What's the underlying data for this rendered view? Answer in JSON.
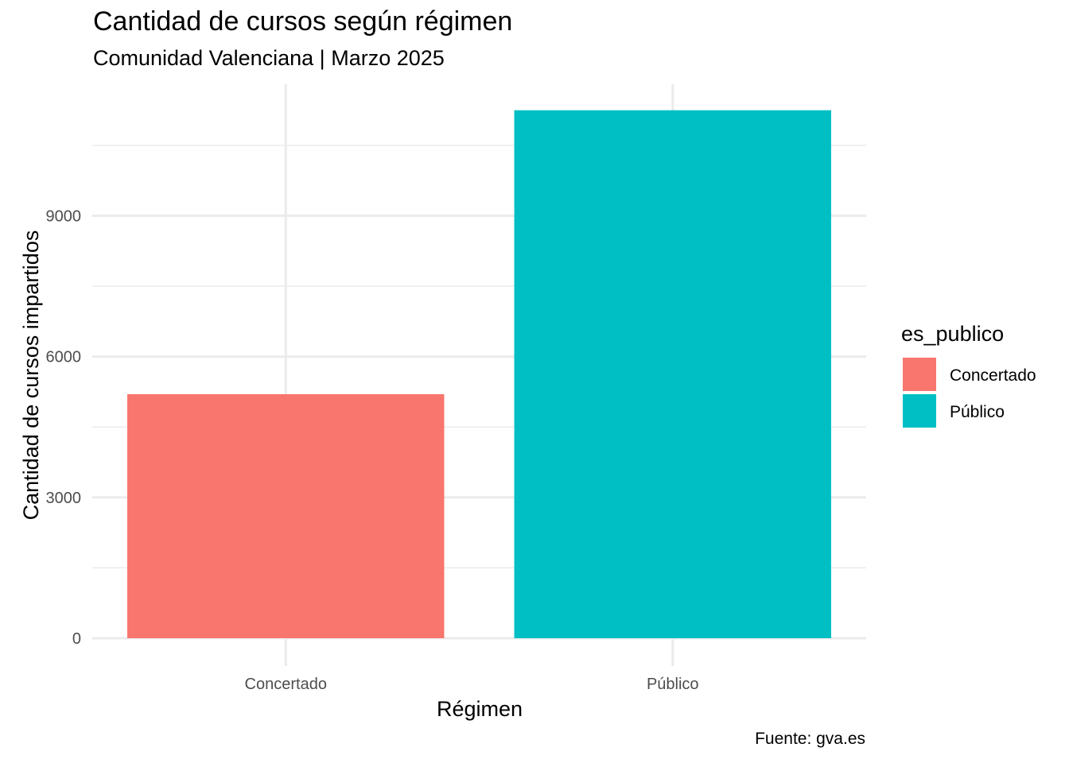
{
  "chart_data": {
    "type": "bar",
    "title": "Cantidad de cursos según régimen",
    "subtitle": "Comunidad Valenciana | Marzo 2025",
    "caption": "Fuente: gva.es",
    "xlabel": "Régimen",
    "ylabel": "Cantidad de cursos impartidos",
    "categories": [
      "Concertado",
      "Público"
    ],
    "values": [
      5200,
      11250
    ],
    "colors": [
      "#F8766D",
      "#00BFC4"
    ],
    "ylim": [
      0,
      11250
    ],
    "yticks": [
      0,
      3000,
      6000,
      9000
    ],
    "grid": true,
    "legend": {
      "title": "es_publico",
      "placement": "right",
      "items": [
        {
          "label": "Concertado",
          "color": "#F8766D"
        },
        {
          "label": "Público",
          "color": "#00BFC4"
        }
      ]
    }
  }
}
